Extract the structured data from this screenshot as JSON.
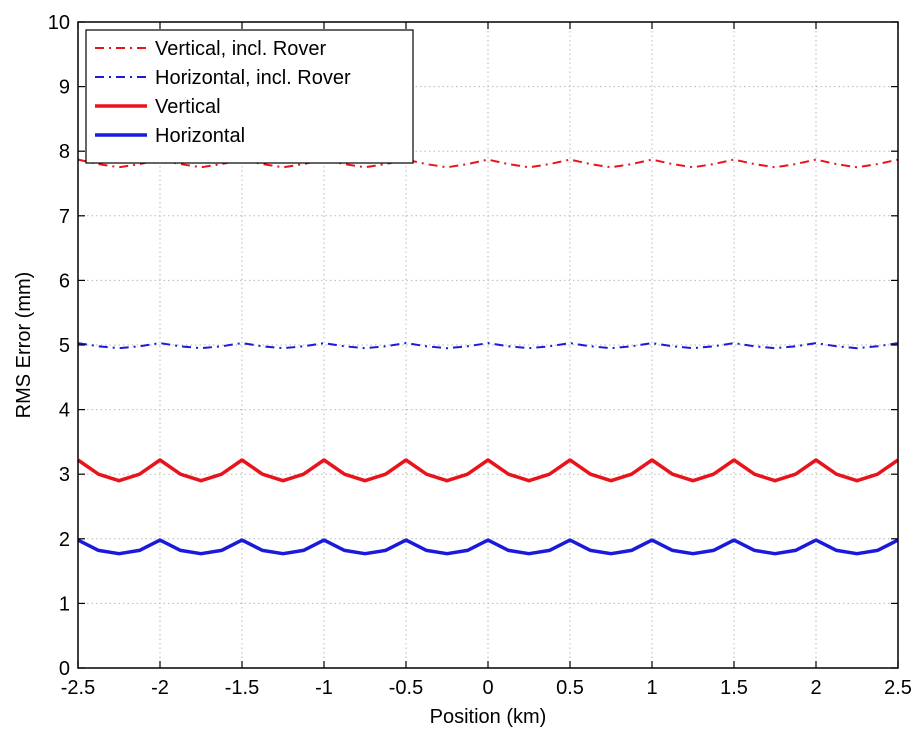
{
  "chart_data": {
    "type": "line",
    "xlabel": "Position (km)",
    "ylabel": "RMS Error (mm)",
    "xlim": [
      -2.5,
      2.5
    ],
    "ylim": [
      0,
      10
    ],
    "xticks": [
      -2.5,
      -2,
      -1.5,
      -1,
      -0.5,
      0,
      0.5,
      1,
      1.5,
      2,
      2.5
    ],
    "xtick_labels": [
      "-2.5",
      "-2",
      "-1.5",
      "-1",
      "-0.5",
      "0",
      "0.5",
      "1",
      "1.5",
      "2",
      "2.5"
    ],
    "yticks": [
      0,
      1,
      2,
      3,
      4,
      5,
      6,
      7,
      8,
      9,
      10
    ],
    "ytick_labels": [
      "0",
      "1",
      "2",
      "3",
      "4",
      "5",
      "6",
      "7",
      "8",
      "9",
      "10"
    ],
    "grid": true,
    "legend_position": "top-left",
    "x": [
      -2.5,
      -2.375,
      -2.25,
      -2.125,
      -2,
      -1.875,
      -1.75,
      -1.625,
      -1.5,
      -1.375,
      -1.25,
      -1.125,
      -1,
      -0.875,
      -0.75,
      -0.625,
      -0.5,
      -0.375,
      -0.25,
      -0.125,
      0,
      0.125,
      0.25,
      0.375,
      0.5,
      0.625,
      0.75,
      0.875,
      1,
      1.125,
      1.25,
      1.375,
      1.5,
      1.625,
      1.75,
      1.875,
      2,
      2.125,
      2.25,
      2.375,
      2.5
    ],
    "series": [
      {
        "name": "Vertical, incl. Rover",
        "color": "#e8141c",
        "style": "dashdot",
        "values": [
          7.87,
          7.8,
          7.75,
          7.8,
          7.87,
          7.8,
          7.75,
          7.8,
          7.87,
          7.8,
          7.75,
          7.8,
          7.87,
          7.8,
          7.75,
          7.8,
          7.87,
          7.8,
          7.75,
          7.8,
          7.87,
          7.8,
          7.75,
          7.8,
          7.87,
          7.8,
          7.75,
          7.8,
          7.87,
          7.8,
          7.75,
          7.8,
          7.87,
          7.8,
          7.75,
          7.8,
          7.87,
          7.8,
          7.75,
          7.8,
          7.87
        ]
      },
      {
        "name": "Horizontal, incl. Rover",
        "color": "#1a1adc",
        "style": "dashdot",
        "values": [
          5.03,
          4.98,
          4.95,
          4.98,
          5.03,
          4.98,
          4.95,
          4.98,
          5.03,
          4.98,
          4.95,
          4.98,
          5.03,
          4.98,
          4.95,
          4.98,
          5.03,
          4.98,
          4.95,
          4.98,
          5.03,
          4.98,
          4.95,
          4.98,
          5.03,
          4.98,
          4.95,
          4.98,
          5.03,
          4.98,
          4.95,
          4.98,
          5.03,
          4.98,
          4.95,
          4.98,
          5.03,
          4.98,
          4.95,
          4.98,
          5.03
        ]
      },
      {
        "name": "Vertical",
        "color": "#e8141c",
        "style": "solid",
        "values": [
          3.22,
          3.0,
          2.9,
          3.0,
          3.22,
          3.0,
          2.9,
          3.0,
          3.22,
          3.0,
          2.9,
          3.0,
          3.22,
          3.0,
          2.9,
          3.0,
          3.22,
          3.0,
          2.9,
          3.0,
          3.22,
          3.0,
          2.9,
          3.0,
          3.22,
          3.0,
          2.9,
          3.0,
          3.22,
          3.0,
          2.9,
          3.0,
          3.22,
          3.0,
          2.9,
          3.0,
          3.22,
          3.0,
          2.9,
          3.0,
          3.22
        ]
      },
      {
        "name": "Horizontal",
        "color": "#1a1adc",
        "style": "solid",
        "values": [
          1.98,
          1.82,
          1.77,
          1.82,
          1.98,
          1.82,
          1.77,
          1.82,
          1.98,
          1.82,
          1.77,
          1.82,
          1.98,
          1.82,
          1.77,
          1.82,
          1.98,
          1.82,
          1.77,
          1.82,
          1.98,
          1.82,
          1.77,
          1.82,
          1.98,
          1.82,
          1.77,
          1.82,
          1.98,
          1.82,
          1.77,
          1.82,
          1.98,
          1.82,
          1.77,
          1.82,
          1.98,
          1.82,
          1.77,
          1.82,
          1.98
        ]
      }
    ]
  }
}
